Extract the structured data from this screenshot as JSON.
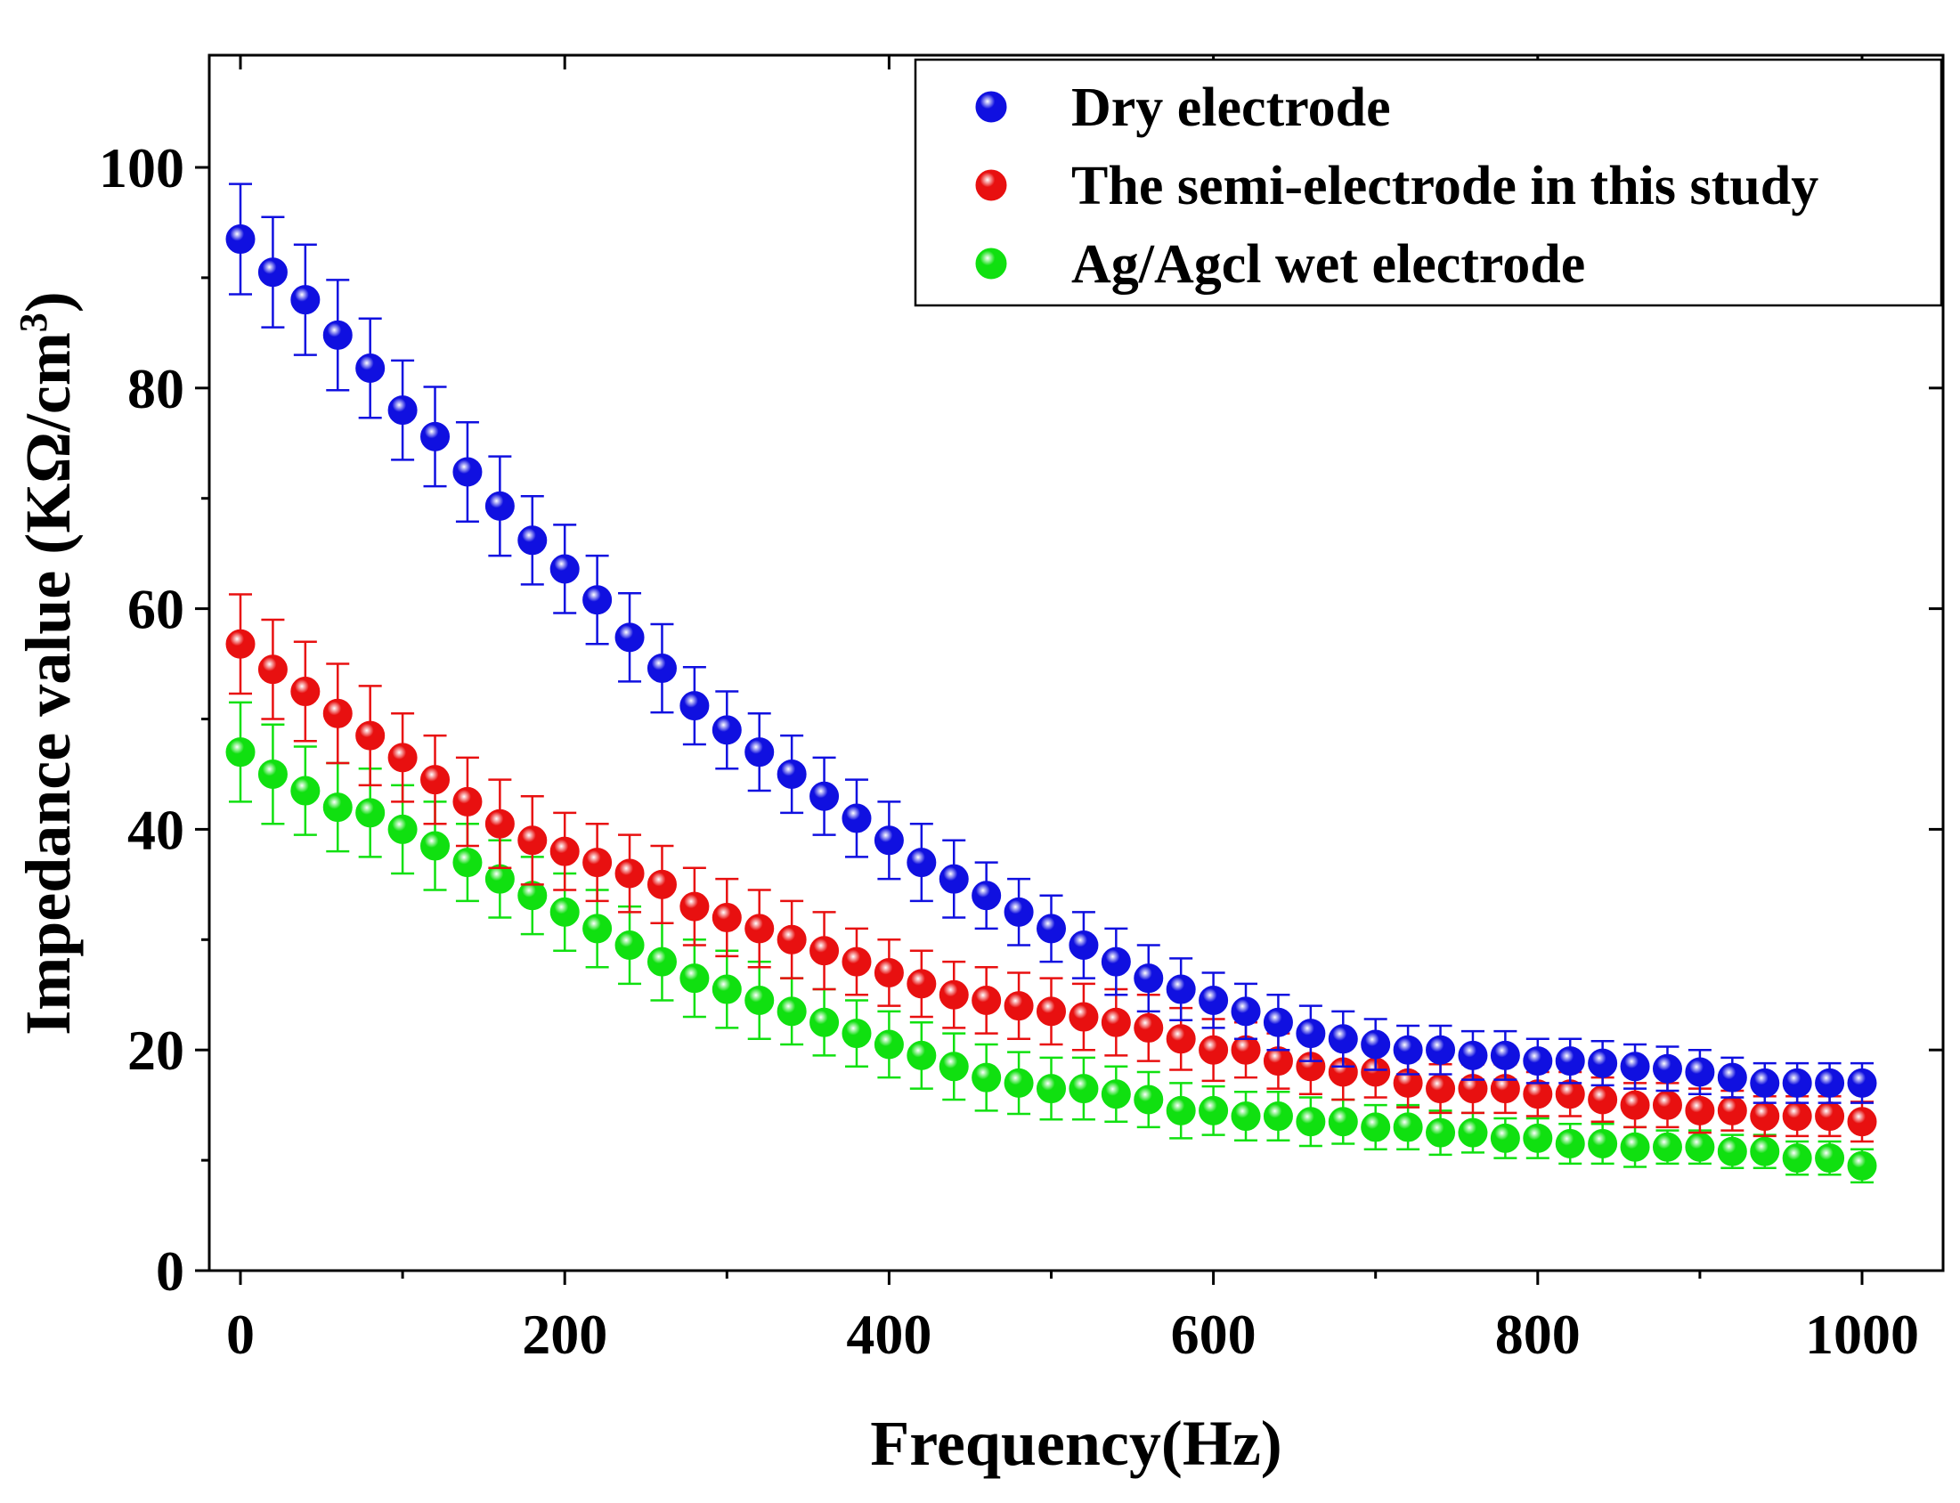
{
  "chart_data": {
    "type": "scatter",
    "title": "",
    "xlabel": "Frequency(Hz)",
    "ylabel": "Impedance value (KΩ/cm",
    "ylabel_superscript": "3",
    "ylabel_suffix": ")",
    "xlim": [
      -20,
      1030
    ],
    "ylim": [
      0,
      110
    ],
    "x_ticks": [
      0,
      200,
      400,
      600,
      800,
      1000
    ],
    "x_tick_labels": [
      "0",
      "200",
      "400",
      "600",
      "800",
      "1000"
    ],
    "y_ticks": [
      0,
      20,
      40,
      60,
      80,
      100
    ],
    "y_tick_labels": [
      "0",
      "20",
      "40",
      "60",
      "80",
      "100"
    ],
    "grid": false,
    "legend_position": "top-right",
    "x": [
      0,
      20,
      40,
      60,
      80,
      100,
      120,
      140,
      160,
      180,
      200,
      220,
      240,
      260,
      280,
      300,
      320,
      340,
      360,
      380,
      400,
      420,
      440,
      460,
      480,
      500,
      520,
      540,
      560,
      580,
      600,
      620,
      640,
      660,
      680,
      700,
      720,
      740,
      760,
      780,
      800,
      820,
      840,
      860,
      880,
      900,
      920,
      940,
      960,
      980,
      1000
    ],
    "series": [
      {
        "name": "Dry electrode",
        "color": "#1010e0",
        "values": [
          93.5,
          90.5,
          88,
          84.8,
          81.8,
          78,
          75.6,
          72.4,
          69.3,
          66.2,
          63.6,
          60.8,
          57.4,
          54.6,
          51.2,
          49,
          47,
          45,
          43,
          41,
          39,
          37,
          35.5,
          34,
          32.5,
          31,
          29.5,
          28,
          26.5,
          25.5,
          24.5,
          23.5,
          22.5,
          21.5,
          21,
          20.5,
          20,
          20,
          19.5,
          19.5,
          19,
          19,
          18.8,
          18.5,
          18.3,
          18,
          17.5,
          17,
          17,
          17,
          17
        ],
        "errors": [
          5,
          5,
          5,
          5,
          4.5,
          4.5,
          4.5,
          4.5,
          4.5,
          4,
          4,
          4,
          4,
          4,
          3.5,
          3.5,
          3.5,
          3.5,
          3.5,
          3.5,
          3.5,
          3.5,
          3.5,
          3,
          3,
          3,
          3,
          3,
          3,
          2.8,
          2.5,
          2.5,
          2.5,
          2.5,
          2.5,
          2.3,
          2.2,
          2.2,
          2.2,
          2.2,
          2,
          2,
          2,
          2,
          2,
          2,
          1.8,
          1.8,
          1.8,
          1.8,
          1.8
        ]
      },
      {
        "name": "The semi-electrode in this study",
        "color": "#e81010",
        "values": [
          56.8,
          54.5,
          52.5,
          50.5,
          48.5,
          46.5,
          44.5,
          42.5,
          40.5,
          39,
          38,
          37,
          36,
          35,
          33,
          32,
          31,
          30,
          29,
          28,
          27,
          26,
          25,
          24.5,
          24,
          23.5,
          23,
          22.5,
          22,
          21,
          20,
          20,
          19,
          18.5,
          18,
          18,
          17,
          16.5,
          16.5,
          16.5,
          16,
          16,
          15.5,
          15,
          15,
          14.5,
          14.5,
          14,
          14,
          14,
          13.5
        ],
        "errors": [
          4.5,
          4.5,
          4.5,
          4.5,
          4.5,
          4,
          4,
          4,
          4,
          4,
          3.5,
          3.5,
          3.5,
          3.5,
          3.5,
          3.5,
          3.5,
          3.5,
          3.5,
          3,
          3,
          3,
          3,
          3,
          3,
          3,
          3,
          3,
          3,
          2.8,
          2.8,
          2.5,
          2.5,
          2.5,
          2.5,
          2.3,
          2.2,
          2.2,
          2.2,
          2.2,
          2,
          2,
          2,
          2,
          2,
          2,
          1.8,
          1.8,
          1.8,
          1.8,
          1.8
        ]
      },
      {
        "name": "Ag/Agcl wet electrode",
        "color": "#10e010",
        "values": [
          47,
          45,
          43.5,
          42,
          41.5,
          40,
          38.5,
          37,
          35.5,
          34,
          32.5,
          31,
          29.5,
          28,
          26.5,
          25.5,
          24.5,
          23.5,
          22.5,
          21.5,
          20.5,
          19.5,
          18.5,
          17.5,
          17,
          16.5,
          16.5,
          16,
          15.5,
          14.5,
          14.5,
          14,
          14,
          13.5,
          13.5,
          13,
          13,
          12.5,
          12.5,
          12,
          12,
          11.5,
          11.5,
          11.2,
          11.2,
          11.2,
          10.8,
          10.8,
          10.2,
          10.2,
          9.5
        ],
        "errors": [
          4.5,
          4.5,
          4,
          4,
          4,
          4,
          4,
          3.5,
          3.5,
          3.5,
          3.5,
          3.5,
          3.5,
          3.5,
          3.5,
          3.5,
          3.5,
          3,
          3,
          3,
          3,
          3,
          3,
          3,
          2.8,
          2.8,
          2.8,
          2.5,
          2.5,
          2.5,
          2.2,
          2.2,
          2.2,
          2.2,
          2,
          2,
          2,
          2,
          1.8,
          1.8,
          1.8,
          1.8,
          1.8,
          1.8,
          1.5,
          1.5,
          1.5,
          1.5,
          1.5,
          1.5,
          1.5
        ]
      }
    ]
  }
}
